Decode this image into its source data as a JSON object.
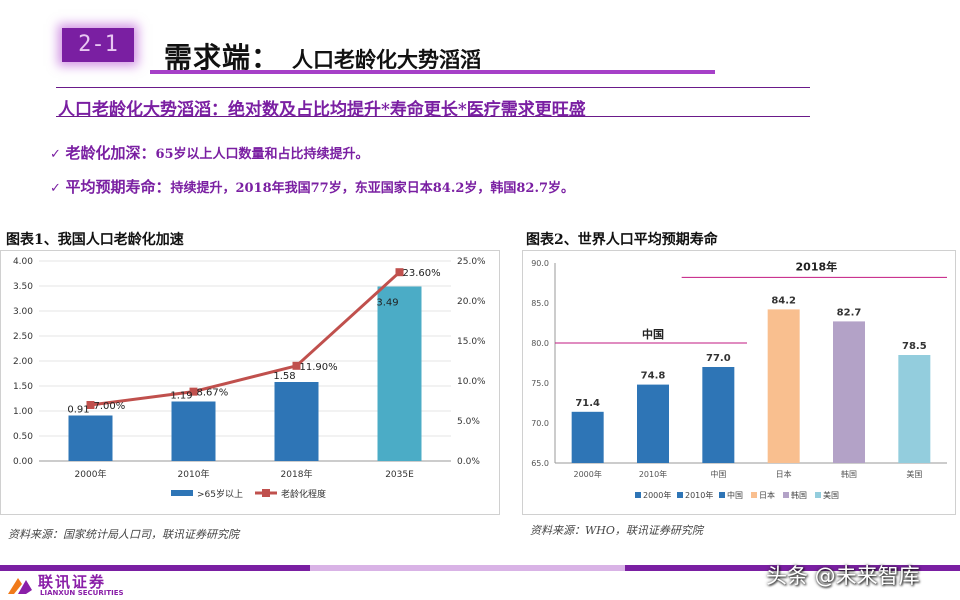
{
  "header": {
    "badge": "2-1",
    "title": "需求端：",
    "subtitle": "人口老龄化大势滔滔"
  },
  "headline": "人口老龄化大势滔滔：绝对数及占比均提升*寿命更长*医疗需求更旺盛",
  "bullets": [
    {
      "key": "老龄化加深：",
      "text": "65岁以上人口数量和占比持续提升。"
    },
    {
      "key": "平均预期寿命：",
      "text": "持续提升，2018年我国77岁，东亚国家日本84.2岁，韩国82.7岁。"
    }
  ],
  "chart1": {
    "caption": "图表1、我国人口老龄化加速",
    "source": "资料来源：国家统计局人口司，联讯证券研究院"
  },
  "chart2": {
    "caption": "图表2、世界人口平均预期寿命",
    "source": "资料来源：WHO，联讯证券研究院"
  },
  "footer": {
    "logo_cn": "联讯证券",
    "logo_en": "LIANXUN SECURITIES",
    "watermark": "头条 @未来智库"
  },
  "colors": {
    "accent": "#7a1fa2",
    "bar_blue": "#2e75b6",
    "bar_teal": "#4bacc6",
    "line_red": "#c0504d"
  },
  "chart_data": [
    {
      "type": "bar",
      "categories": [
        "2000年",
        "2010年",
        "2018年",
        "2035E"
      ],
      "series": [
        {
          "name": ">65岁以上",
          "values": [
            0.91,
            1.19,
            1.58,
            3.49
          ],
          "labels": [
            "0.91",
            "1.19",
            "1.58",
            "3.49"
          ]
        },
        {
          "name": "老龄化程度",
          "values": [
            7.0,
            8.67,
            11.9,
            23.6
          ],
          "labels": [
            "7.00%",
            "8.67%",
            "11.90%",
            "23.60%"
          ],
          "axis": "right",
          "type": "line"
        }
      ],
      "yticks_left": [
        "0.00",
        "0.50",
        "1.00",
        "1.50",
        "2.00",
        "2.50",
        "3.00",
        "3.50",
        "4.00"
      ],
      "yticks_right": [
        "0.0%",
        "5.0%",
        "10.0%",
        "15.0%",
        "20.0%",
        "25.0%"
      ],
      "ylim_left": [
        0,
        4
      ],
      "ylim_right": [
        0,
        25
      ],
      "legend": "bottom"
    },
    {
      "type": "bar",
      "categories": [
        "2000年",
        "2010年",
        "中国",
        "日本",
        "韩国",
        "美国"
      ],
      "values": [
        71.4,
        74.8,
        77.0,
        84.2,
        82.7,
        78.5
      ],
      "labels": [
        "71.4",
        "74.8",
        "77.0",
        "84.2",
        "82.7",
        "78.5"
      ],
      "bar_colors": [
        "#2e75b6",
        "#2e75b6",
        "#2e75b6",
        "#f9bf8f",
        "#b3a2c7",
        "#93cddd"
      ],
      "legend_entries": [
        "2000年",
        "2010年",
        "中国",
        "日本",
        "韩国",
        "美国"
      ],
      "yticks": [
        "65.0",
        "70.0",
        "75.0",
        "80.0",
        "85.0",
        "90.0"
      ],
      "ylim": [
        65,
        90
      ],
      "annotations": [
        {
          "text": "中国",
          "y": 80.0
        },
        {
          "text": "2018年",
          "y": 88.2
        }
      ],
      "legend": "bottom"
    }
  ]
}
